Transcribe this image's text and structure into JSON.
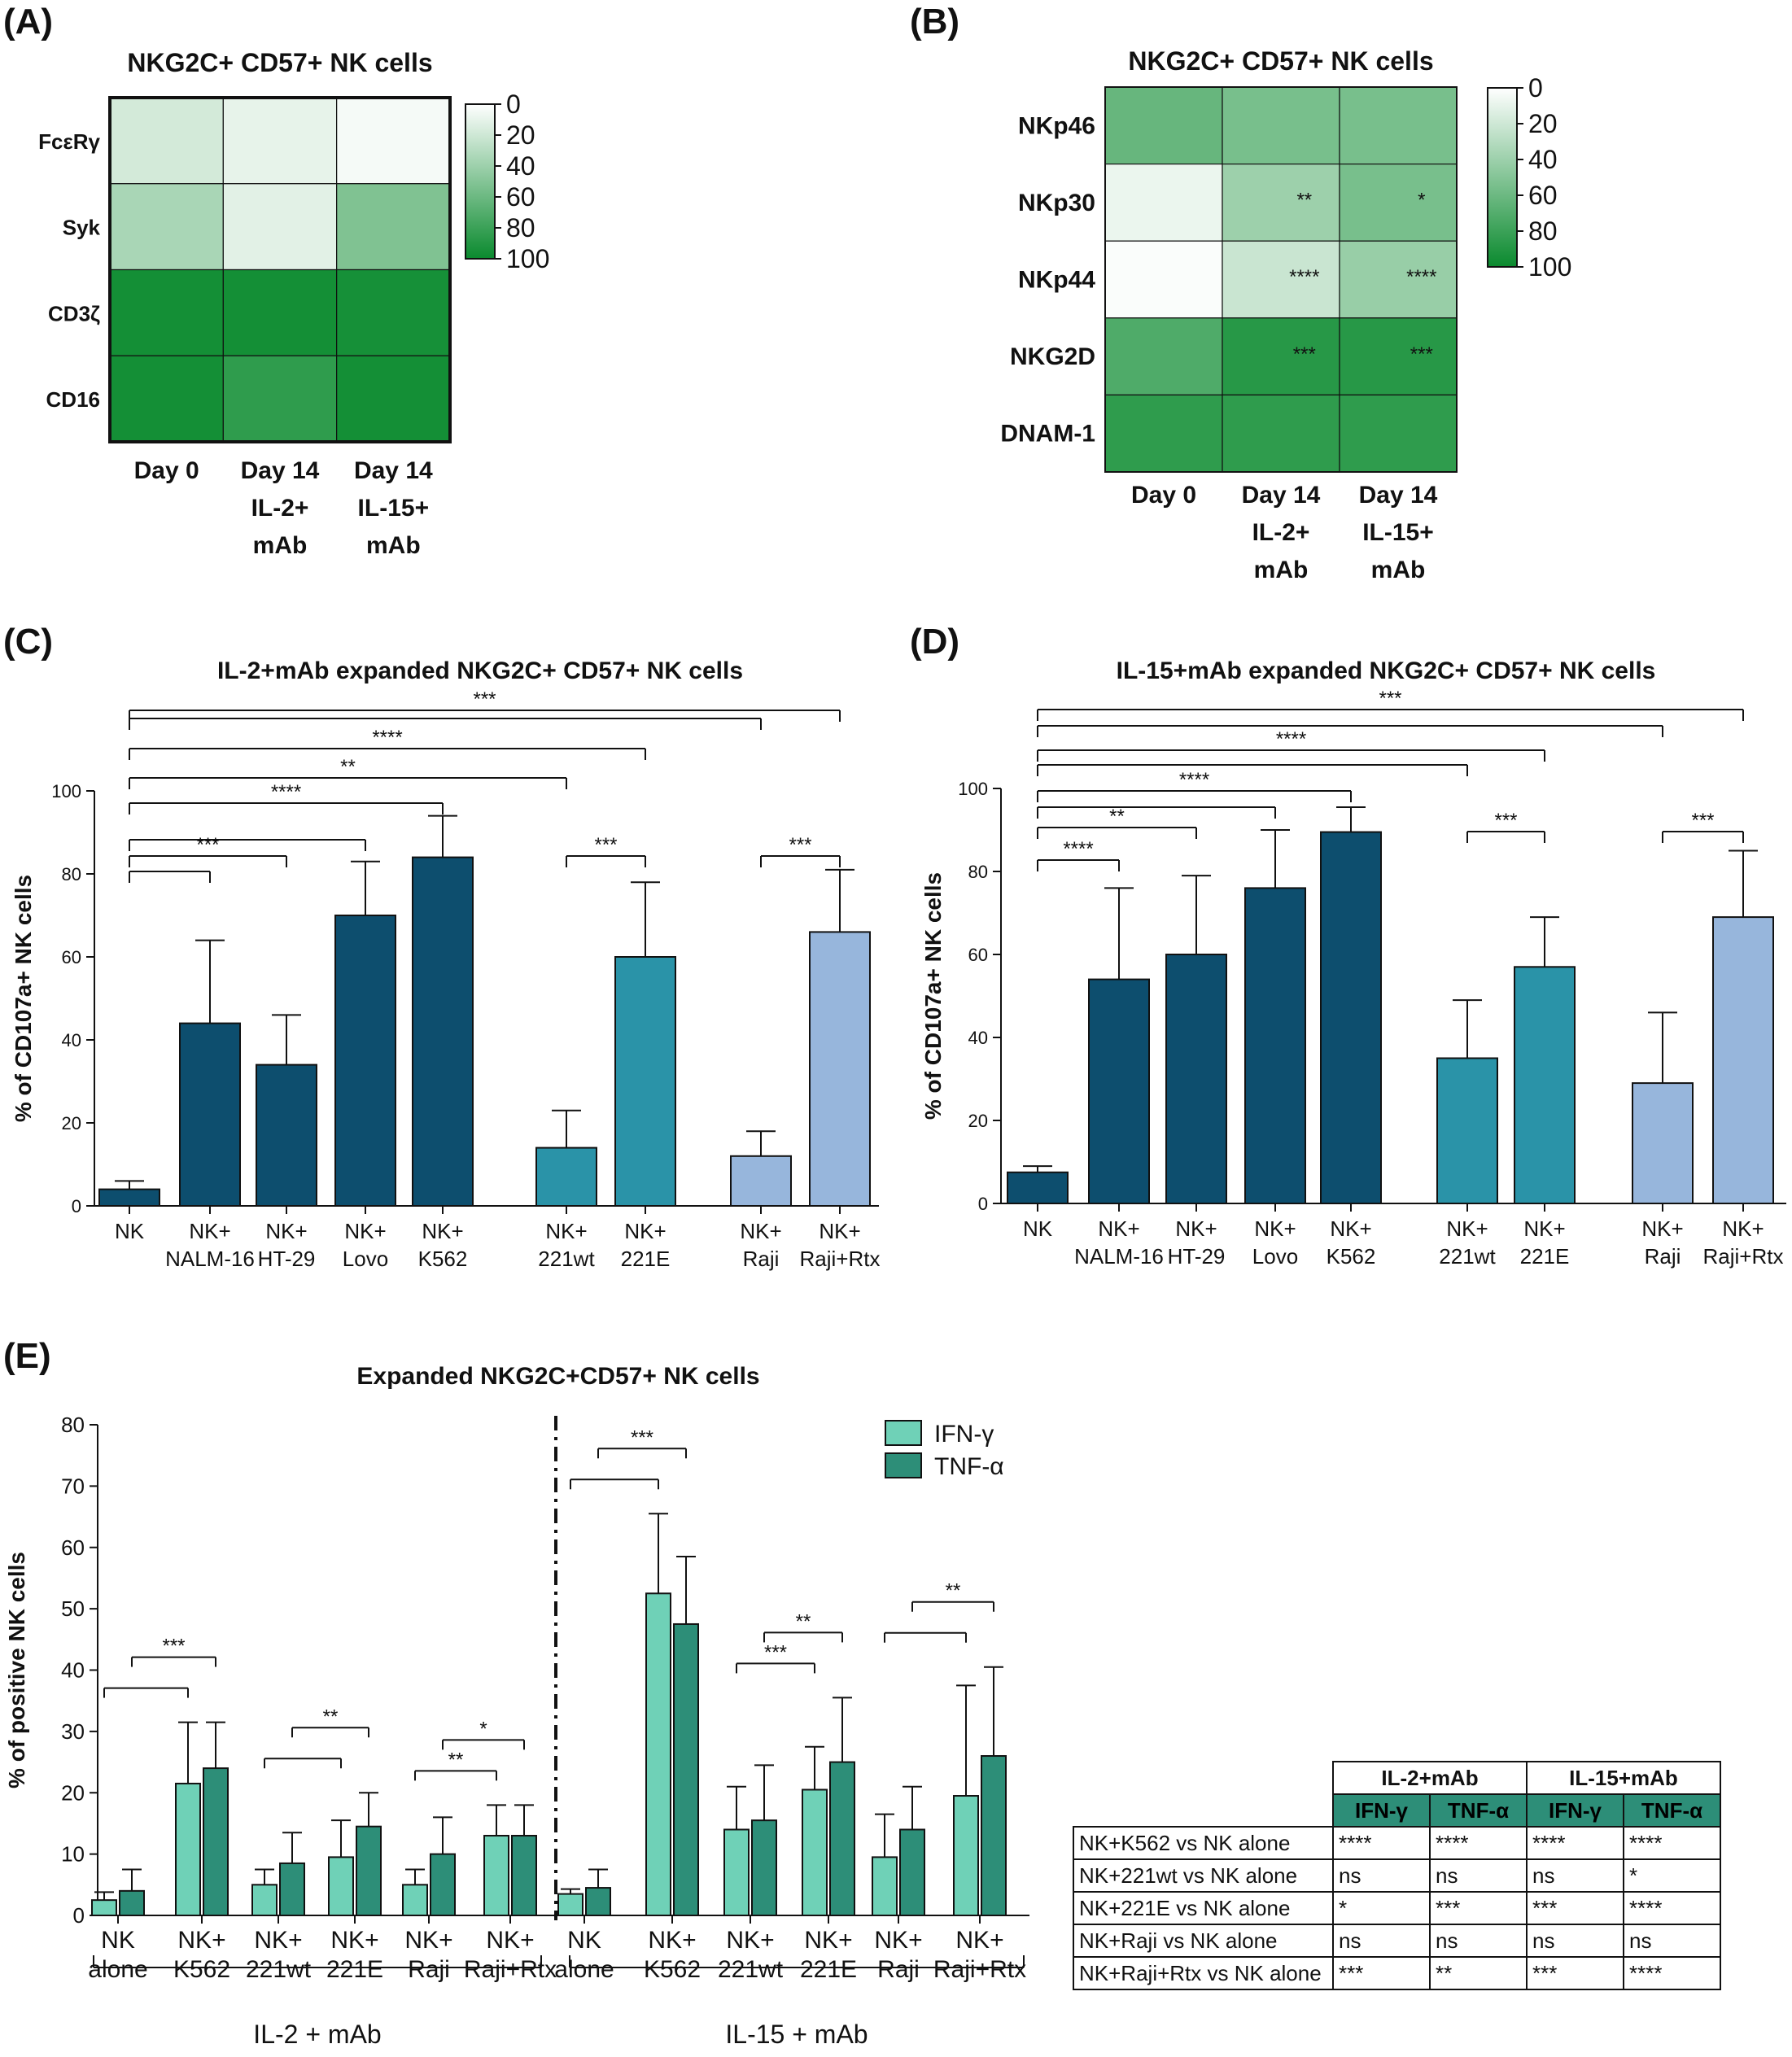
{
  "panel_labels": {
    "A": "(A)",
    "B": "(B)",
    "C": "(C)",
    "D": "(D)",
    "E": "(E)"
  },
  "colors": {
    "heat_low": "#ffffff",
    "heat_high": "#0a8a2e",
    "nk_alone": "#0d4e6e",
    "tumor_dark": "#0d4e6e",
    "tumor_221": "#2a93a8",
    "tumor_raji": "#97b6dc",
    "ifn": "#6fd1b7",
    "tnf": "#2d8e78"
  },
  "chart_data": [
    {
      "id": "A",
      "type": "heatmap",
      "title": "NKG2C+ CD57+ NK cells",
      "rows": [
        "FcεRγ",
        "Syk",
        "CD3ζ",
        "CD16"
      ],
      "columns": [
        "Day 0",
        "Day 14 IL-2+ mAb",
        "Day 14 IL-15+ mAb"
      ],
      "column_labels": [
        [
          "Day 0"
        ],
        [
          "Day 14",
          "IL-2+",
          "mAb"
        ],
        [
          "Day 14",
          "IL-15+",
          "mAb"
        ]
      ],
      "values": [
        [
          18,
          10,
          4
        ],
        [
          35,
          12,
          52
        ],
        [
          96,
          96,
          95
        ],
        [
          96,
          85,
          96
        ]
      ],
      "colorbar": {
        "ticks": [
          "0",
          "20",
          "40",
          "60",
          "80",
          "100"
        ],
        "range": [
          0,
          100
        ]
      }
    },
    {
      "id": "B",
      "type": "heatmap",
      "title": "NKG2C+ CD57+ NK cells",
      "rows": [
        "NKp46",
        "NKp30",
        "NKp44",
        "NKG2D",
        "DNAM-1"
      ],
      "columns": [
        "Day 0",
        "Day 14 IL-2+ mAb",
        "Day 14 IL-15+ mAb"
      ],
      "column_labels": [
        [
          "Day 0"
        ],
        [
          "Day 14",
          "IL-2+",
          "mAb"
        ],
        [
          "Day 14",
          "IL-15+",
          "mAb"
        ]
      ],
      "values": [
        [
          62,
          55,
          55
        ],
        [
          8,
          40,
          55
        ],
        [
          2,
          22,
          42
        ],
        [
          72,
          88,
          88
        ],
        [
          85,
          85,
          85
        ]
      ],
      "annotations": [
        [
          "",
          "",
          ""
        ],
        [
          "",
          "**",
          "*"
        ],
        [
          "",
          "****",
          "****"
        ],
        [
          "",
          "***",
          "***"
        ],
        [
          "",
          "",
          ""
        ]
      ],
      "colorbar": {
        "ticks": [
          "0",
          "20",
          "40",
          "60",
          "80",
          "100"
        ],
        "range": [
          0,
          100
        ]
      }
    },
    {
      "id": "C",
      "type": "bar",
      "title": "IL-2+mAb expanded NKG2C+ CD57+ NK cells",
      "ylabel": "% of CD107a+ NK cells",
      "ylim": [
        0,
        100
      ],
      "yticks": [
        "0",
        "20",
        "40",
        "60",
        "80",
        "100"
      ],
      "categories": [
        [
          "NK"
        ],
        [
          "NK+",
          "NALM-16"
        ],
        [
          "NK+",
          "HT-29"
        ],
        [
          "NK+",
          "Lovo"
        ],
        [
          "NK+",
          "K562"
        ],
        [
          "NK+",
          "221wt"
        ],
        [
          "NK+",
          "221E"
        ],
        [
          "NK+",
          "Raji"
        ],
        [
          "NK+",
          "Raji+Rtx"
        ]
      ],
      "values": [
        4,
        44,
        34,
        70,
        84,
        14,
        60,
        12,
        66
      ],
      "errors": [
        2,
        20,
        12,
        13,
        10,
        9,
        18,
        6,
        15
      ],
      "groups": [
        "dark",
        "dark",
        "dark",
        "dark",
        "dark",
        "221",
        "221",
        "raji",
        "raji"
      ],
      "brackets": [
        {
          "from": 0,
          "to": 1,
          "label": ""
        },
        {
          "from": 0,
          "to": 2,
          "label": "***"
        },
        {
          "from": 0,
          "to": 3,
          "label": ""
        },
        {
          "from": 0,
          "to": 4,
          "label": "****"
        },
        {
          "from": 0,
          "to": 5,
          "label": "**"
        },
        {
          "from": 0,
          "to": 6,
          "label": "****"
        },
        {
          "from": 0,
          "to": 7,
          "label": ""
        },
        {
          "from": 0,
          "to": 8,
          "label": "***"
        },
        {
          "from": 5,
          "to": 6,
          "label": "***"
        },
        {
          "from": 7,
          "to": 8,
          "label": "***"
        }
      ]
    },
    {
      "id": "D",
      "type": "bar",
      "title": "IL-15+mAb expanded NKG2C+ CD57+ NK cells",
      "ylabel": "% of CD107a+ NK cells",
      "ylim": [
        0,
        100
      ],
      "yticks": [
        "0",
        "20",
        "40",
        "60",
        "80",
        "100"
      ],
      "categories": [
        [
          "NK"
        ],
        [
          "NK+",
          "NALM-16"
        ],
        [
          "NK+",
          "HT-29"
        ],
        [
          "NK+",
          "Lovo"
        ],
        [
          "NK+",
          "K562"
        ],
        [
          "NK+",
          "221wt"
        ],
        [
          "NK+",
          "221E"
        ],
        [
          "NK+",
          "Raji"
        ],
        [
          "NK+",
          "Raji+Rtx"
        ]
      ],
      "values": [
        7.5,
        54,
        60,
        76,
        89.5,
        35,
        57,
        29,
        69
      ],
      "errors": [
        1.5,
        22,
        19,
        14,
        6,
        14,
        12,
        17,
        16
      ],
      "groups": [
        "dark",
        "dark",
        "dark",
        "dark",
        "dark",
        "221",
        "221",
        "raji",
        "raji"
      ],
      "brackets": [
        {
          "from": 0,
          "to": 1,
          "label": "****"
        },
        {
          "from": 0,
          "to": 2,
          "label": "**"
        },
        {
          "from": 0,
          "to": 3,
          "label": ""
        },
        {
          "from": 0,
          "to": 4,
          "label": "****"
        },
        {
          "from": 0,
          "to": 5,
          "label": ""
        },
        {
          "from": 0,
          "to": 6,
          "label": "****"
        },
        {
          "from": 0,
          "to": 7,
          "label": ""
        },
        {
          "from": 0,
          "to": 8,
          "label": "***"
        },
        {
          "from": 5,
          "to": 6,
          "label": "***"
        },
        {
          "from": 7,
          "to": 8,
          "label": "***"
        }
      ]
    },
    {
      "id": "E",
      "type": "bar",
      "title": "Expanded NKG2C+CD57+ NK cells",
      "ylabel": "% of positive NK cells",
      "ylim": [
        0,
        80
      ],
      "yticks": [
        "0",
        "10",
        "20",
        "30",
        "40",
        "50",
        "60",
        "70",
        "80"
      ],
      "categories": [
        [
          "NK",
          "alone"
        ],
        [
          "NK+",
          "K562"
        ],
        [
          "NK+",
          "221wt"
        ],
        [
          "NK+",
          "221E"
        ],
        [
          "NK+",
          "Raji"
        ],
        [
          "NK+",
          "Raji+Rtx"
        ],
        [
          "NK",
          "alone"
        ],
        [
          "NK+",
          "K562"
        ],
        [
          "NK+",
          "221wt"
        ],
        [
          "NK+",
          "221E"
        ],
        [
          "NK+",
          "Raji"
        ],
        [
          "NK+",
          "Raji+Rtx"
        ]
      ],
      "series": [
        {
          "name": "IFN-γ",
          "values": [
            2.5,
            21.5,
            5,
            9.5,
            5,
            13,
            3.5,
            52.5,
            14,
            20.5,
            9.5,
            19.5
          ],
          "errors": [
            1.3,
            10,
            2.5,
            6,
            2.5,
            5,
            0.8,
            13,
            7,
            7,
            7,
            18
          ]
        },
        {
          "name": "TNF-α",
          "values": [
            4,
            24,
            8.5,
            14.5,
            10,
            13,
            4.5,
            47.5,
            15.5,
            25,
            14,
            26
          ],
          "errors": [
            3.5,
            7.5,
            5,
            5.5,
            6,
            5,
            3,
            11,
            9,
            10.5,
            7,
            14.5
          ]
        }
      ],
      "group_labels": [
        "IL-2 + mAb",
        "IL-15 + mAb"
      ],
      "brackets": [
        {
          "from": 0,
          "to": 1,
          "level": "low",
          "label": ""
        },
        {
          "from": 0,
          "to": 1,
          "level": "high",
          "label": "***"
        },
        {
          "from": 2,
          "to": 3,
          "level": "low",
          "label": ""
        },
        {
          "from": 2,
          "to": 3,
          "level": "high",
          "label": "**"
        },
        {
          "from": 4,
          "to": 5,
          "level": "low",
          "label": "**"
        },
        {
          "from": 4,
          "to": 5,
          "level": "high",
          "label": "*"
        },
        {
          "from": 6,
          "to": 7,
          "level": "low",
          "label": ""
        },
        {
          "from": 6,
          "to": 7,
          "level": "high",
          "label": "***"
        },
        {
          "from": 8,
          "to": 9,
          "level": "low",
          "label": "***"
        },
        {
          "from": 8,
          "to": 9,
          "level": "high",
          "label": "**"
        },
        {
          "from": 10,
          "to": 11,
          "level": "low",
          "label": ""
        },
        {
          "from": 10,
          "to": 11,
          "level": "high",
          "label": "**"
        }
      ]
    }
  ],
  "stats_table": {
    "groups": [
      "IL-2+mAb",
      "IL-15+mAb"
    ],
    "subheaders": [
      "IFN-γ",
      "TNF-α",
      "IFN-γ",
      "TNF-α"
    ],
    "rows": [
      {
        "label": "NK+K562 vs NK alone",
        "cells": [
          "****",
          "****",
          "****",
          "****"
        ]
      },
      {
        "label": "NK+221wt vs NK alone",
        "cells": [
          "ns",
          "ns",
          "ns",
          "*"
        ]
      },
      {
        "label": "NK+221E vs NK alone",
        "cells": [
          "*",
          "***",
          "***",
          "****"
        ]
      },
      {
        "label": "NK+Raji vs NK alone",
        "cells": [
          "ns",
          "ns",
          "ns",
          "ns"
        ]
      },
      {
        "label": "NK+Raji+Rtx vs NK alone",
        "cells": [
          "***",
          "**",
          "***",
          "****"
        ]
      }
    ]
  }
}
